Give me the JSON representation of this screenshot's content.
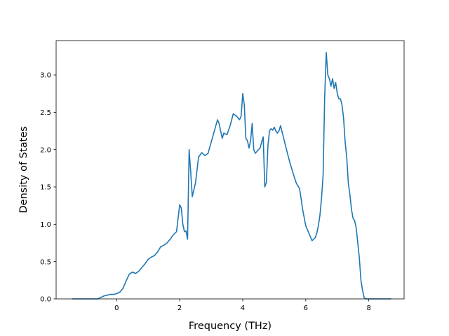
{
  "chart_data": {
    "type": "line",
    "title": "",
    "xlabel": "Frequency (THz)",
    "ylabel": "Density of States",
    "xlim": [
      -1.92,
      9.12
    ],
    "ylim": [
      0.0,
      3.46
    ],
    "xticks": [
      0,
      2,
      4,
      6,
      8
    ],
    "xtick_labels": [
      "0",
      "2",
      "4",
      "6",
      "8"
    ],
    "yticks": [
      0.0,
      0.5,
      1.0,
      1.5,
      2.0,
      2.5,
      3.0
    ],
    "ytick_labels": [
      "0.0",
      "0.5",
      "1.0",
      "1.5",
      "2.0",
      "2.5",
      "3.0"
    ],
    "grid": false,
    "series": [
      {
        "color": "#1f77b4",
        "x": [
          -1.4,
          -0.6,
          -0.5,
          -0.4,
          -0.3,
          -0.2,
          -0.1,
          0.0,
          0.1,
          0.2,
          0.3,
          0.4,
          0.5,
          0.6,
          0.7,
          0.8,
          0.9,
          1.0,
          1.1,
          1.2,
          1.3,
          1.4,
          1.5,
          1.6,
          1.7,
          1.8,
          1.9,
          2.0,
          2.05,
          2.1,
          2.15,
          2.2,
          2.25,
          2.3,
          2.35,
          2.4,
          2.5,
          2.6,
          2.7,
          2.8,
          2.9,
          3.0,
          3.1,
          3.2,
          3.25,
          3.3,
          3.35,
          3.4,
          3.5,
          3.6,
          3.7,
          3.8,
          3.9,
          3.95,
          4.0,
          4.05,
          4.1,
          4.15,
          4.2,
          4.25,
          4.3,
          4.35,
          4.4,
          4.5,
          4.55,
          4.6,
          4.65,
          4.7,
          4.75,
          4.8,
          4.85,
          4.9,
          4.95,
          5.0,
          5.05,
          5.1,
          5.15,
          5.2,
          5.3,
          5.4,
          5.5,
          5.6,
          5.7,
          5.8,
          5.85,
          5.9,
          6.0,
          6.1,
          6.2,
          6.3,
          6.35,
          6.4,
          6.45,
          6.5,
          6.55,
          6.6,
          6.65,
          6.7,
          6.75,
          6.8,
          6.85,
          6.9,
          6.95,
          7.0,
          7.05,
          7.1,
          7.15,
          7.2,
          7.25,
          7.3,
          7.35,
          7.4,
          7.45,
          7.5,
          7.55,
          7.6,
          7.65,
          7.7,
          7.75,
          7.8,
          7.85,
          7.9,
          8.0,
          8.2,
          8.4,
          8.7
        ],
        "y": [
          0.0,
          0.0,
          0.02,
          0.04,
          0.05,
          0.06,
          0.06,
          0.07,
          0.09,
          0.14,
          0.24,
          0.33,
          0.36,
          0.34,
          0.37,
          0.42,
          0.47,
          0.53,
          0.56,
          0.58,
          0.63,
          0.7,
          0.72,
          0.75,
          0.8,
          0.86,
          0.9,
          1.26,
          1.22,
          1.0,
          0.9,
          0.91,
          0.8,
          2.0,
          1.7,
          1.37,
          1.55,
          1.9,
          1.96,
          1.92,
          1.95,
          2.1,
          2.25,
          2.4,
          2.35,
          2.25,
          2.15,
          2.22,
          2.2,
          2.32,
          2.48,
          2.45,
          2.4,
          2.45,
          2.75,
          2.6,
          2.15,
          2.12,
          2.02,
          2.12,
          2.35,
          2.0,
          1.95,
          2.0,
          2.02,
          2.1,
          2.17,
          1.5,
          1.56,
          2.05,
          2.25,
          2.28,
          2.26,
          2.3,
          2.25,
          2.22,
          2.25,
          2.32,
          2.15,
          1.98,
          1.82,
          1.68,
          1.55,
          1.48,
          1.35,
          1.2,
          0.98,
          0.88,
          0.78,
          0.82,
          0.88,
          0.98,
          1.12,
          1.35,
          1.65,
          2.7,
          3.3,
          3.0,
          2.95,
          2.85,
          2.95,
          2.82,
          2.9,
          2.75,
          2.68,
          2.68,
          2.6,
          2.42,
          2.1,
          1.9,
          1.55,
          1.4,
          1.2,
          1.08,
          1.05,
          0.95,
          0.75,
          0.55,
          0.25,
          0.12,
          0.02,
          0.0,
          0.0,
          0.0,
          0.0,
          0.0
        ]
      }
    ]
  }
}
